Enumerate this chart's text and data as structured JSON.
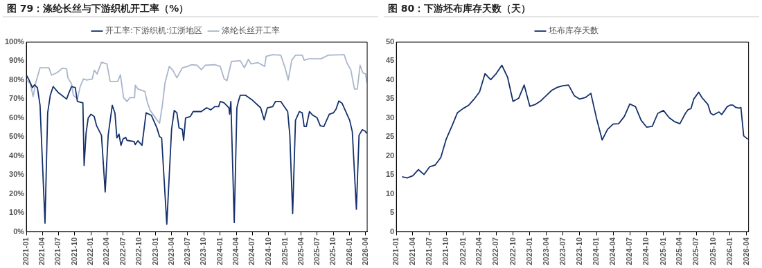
{
  "chart_data": [
    {
      "type": "line",
      "title": "图 79：涤纶长丝与下游织机开工率（%）",
      "legend": "top",
      "marker": "none",
      "line_style": "solid",
      "xlim": [
        "2021-01-01",
        "2026-04-10"
      ],
      "xticks": [
        "2021-01",
        "2021-04",
        "2021-07",
        "2021-10",
        "2022-01",
        "2022-04",
        "2022-07",
        "2022-10",
        "2023-01",
        "2023-04",
        "2023-07",
        "2023-10",
        "2024-01",
        "2024-04",
        "2024-07",
        "2024-10",
        "2025-01",
        "2025-04",
        "2025-07",
        "2025-10",
        "2026-01",
        "2026-04"
      ],
      "ylim": [
        0,
        100
      ],
      "yticks": [
        {
          "value": 0,
          "label": "0%"
        },
        {
          "value": 10,
          "label": "10%"
        },
        {
          "value": 20,
          "label": "20%"
        },
        {
          "value": 30,
          "label": "30%"
        },
        {
          "value": 40,
          "label": "40%"
        },
        {
          "value": 50,
          "label": "50%"
        },
        {
          "value": 60,
          "label": "60%"
        },
        {
          "value": 70,
          "label": "70%"
        },
        {
          "value": 80,
          "label": "80%"
        },
        {
          "value": 90,
          "label": "90%"
        },
        {
          "value": 100,
          "label": "100%"
        }
      ],
      "series": [
        {
          "name": "开工率:下游织机:江浙地区",
          "color": "#14306b",
          "x": [
            "2021-01-01",
            "2021-01-16",
            "2021-02-04",
            "2021-02-16",
            "2021-03-04",
            "2021-03-19",
            "2021-04-16",
            "2021-05-01",
            "2021-05-16",
            "2021-06-01",
            "2021-07-01",
            "2021-08-16",
            "2021-08-28",
            "2021-09-13",
            "2021-10-04",
            "2021-10-16",
            "2021-11-16",
            "2021-11-23",
            "2021-12-04",
            "2021-12-16",
            "2022-01-01",
            "2022-01-19",
            "2022-02-01",
            "2022-03-01",
            "2022-03-22",
            "2022-04-08",
            "2022-05-01",
            "2022-05-16",
            "2022-05-27",
            "2022-06-08",
            "2022-06-19",
            "2022-07-01",
            "2022-07-16",
            "2022-07-23",
            "2022-09-01",
            "2022-09-08",
            "2022-09-23",
            "2022-10-16",
            "2022-11-08",
            "2022-12-08",
            "2023-01-08",
            "2023-01-23",
            "2023-02-04",
            "2023-03-05",
            "2023-04-01",
            "2023-04-16",
            "2023-05-01",
            "2023-05-13",
            "2023-06-01",
            "2023-06-08",
            "2023-06-19",
            "2023-07-16",
            "2023-08-01",
            "2023-09-16",
            "2023-10-16",
            "2023-11-08",
            "2023-12-01",
            "2023-12-23",
            "2024-01-01",
            "2024-01-23",
            "2024-02-19",
            "2024-02-23",
            "2024-03-01",
            "2024-03-20",
            "2024-04-04",
            "2024-04-13",
            "2024-04-23",
            "2024-05-23",
            "2024-07-01",
            "2024-08-16",
            "2024-09-05",
            "2024-09-23",
            "2024-10-23",
            "2024-11-08",
            "2024-12-08",
            "2025-01-16",
            "2025-01-28",
            "2025-02-13",
            "2025-03-01",
            "2025-03-23",
            "2025-04-08",
            "2025-04-19",
            "2025-05-01",
            "2025-05-19",
            "2025-06-04",
            "2025-07-01",
            "2025-07-19",
            "2025-08-08",
            "2025-09-08",
            "2025-10-01",
            "2025-10-16",
            "2025-11-01",
            "2025-11-19",
            "2026-01-01",
            "2026-01-16",
            "2026-02-08",
            "2026-02-23",
            "2026-03-13",
            "2026-03-28",
            "2026-04-08"
          ],
          "values": [
            82.6,
            80,
            76,
            77.5,
            76,
            66.7,
            4.6,
            62.7,
            72,
            76.6,
            73.3,
            70,
            73,
            76.6,
            76,
            68.7,
            68,
            35,
            52,
            60,
            62,
            60.8,
            56,
            50.9,
            21,
            51,
            66.7,
            62.7,
            49.5,
            51.5,
            45.6,
            48.9,
            49.8,
            48.2,
            47.6,
            46,
            48,
            45.6,
            62.7,
            61.4,
            54.8,
            50.2,
            49.5,
            4,
            54,
            64,
            62.7,
            54.8,
            54,
            48.2,
            60,
            60.8,
            63.4,
            63.4,
            65.4,
            64.3,
            66,
            66,
            68.7,
            68,
            65.4,
            62,
            68.7,
            4.9,
            65.4,
            69,
            72,
            72,
            69.4,
            65.4,
            59,
            65.4,
            66,
            68.7,
            68.7,
            63.4,
            50.9,
            9.6,
            58.8,
            63.4,
            62.7,
            55.5,
            55.5,
            63.4,
            61.7,
            60.1,
            55.9,
            55.5,
            62,
            62.7,
            64.7,
            69,
            67.8,
            58.8,
            52.8,
            11.9,
            50.9,
            53.8,
            53.2,
            51.9
          ]
        },
        {
          "name": "涤纶长丝开工率",
          "color": "#a8b6cc",
          "x": [
            "2021-01-01",
            "2021-01-23",
            "2021-02-08",
            "2021-02-23",
            "2021-03-19",
            "2021-05-08",
            "2021-05-23",
            "2021-06-23",
            "2021-07-23",
            "2021-08-16",
            "2021-08-23",
            "2021-09-13",
            "2021-09-23",
            "2021-10-16",
            "2021-11-01",
            "2021-11-19",
            "2021-12-08",
            "2022-01-08",
            "2022-01-19",
            "2022-02-04",
            "2022-03-01",
            "2022-04-01",
            "2022-04-19",
            "2022-06-01",
            "2022-06-16",
            "2022-07-04",
            "2022-07-23",
            "2022-08-08",
            "2022-09-04",
            "2022-09-08",
            "2022-09-23",
            "2022-11-01",
            "2022-11-16",
            "2022-12-01",
            "2023-01-01",
            "2023-01-23",
            "2023-02-08",
            "2023-02-23",
            "2023-03-19",
            "2023-04-08",
            "2023-05-01",
            "2023-06-01",
            "2023-07-01",
            "2023-07-23",
            "2023-08-23",
            "2023-09-16",
            "2023-10-08",
            "2023-12-01",
            "2024-01-01",
            "2024-01-23",
            "2024-02-08",
            "2024-03-04",
            "2024-04-23",
            "2024-05-16",
            "2024-06-08",
            "2024-06-23",
            "2024-08-01",
            "2024-09-08",
            "2024-09-16",
            "2024-10-23",
            "2024-12-08",
            "2025-01-01",
            "2025-01-19",
            "2025-02-08",
            "2025-03-01",
            "2025-04-08",
            "2025-04-19",
            "2025-05-16",
            "2025-07-23",
            "2025-09-01",
            "2025-12-01",
            "2025-12-16",
            "2026-01-08",
            "2026-01-28",
            "2026-02-13",
            "2026-03-01",
            "2026-03-16",
            "2026-04-01",
            "2026-04-09"
          ],
          "values": [
            80,
            78,
            71.3,
            78.6,
            86.5,
            86.5,
            82.6,
            83.9,
            86.3,
            85.9,
            81.2,
            78,
            72,
            70,
            76.6,
            80.6,
            80,
            80.6,
            85.2,
            83.2,
            89.4,
            88.5,
            79.3,
            79.3,
            82.8,
            70.7,
            68.7,
            70.7,
            70.7,
            77.3,
            75.3,
            74,
            68,
            64,
            60,
            57.2,
            66.7,
            78.6,
            87.2,
            85.2,
            81.2,
            86.5,
            87.2,
            88.1,
            87.8,
            85.5,
            87.8,
            88.1,
            87.2,
            80.6,
            79.7,
            89.8,
            90.2,
            86.5,
            90.9,
            88.5,
            89.2,
            87.2,
            92.5,
            93.4,
            93.1,
            86.5,
            80,
            90.5,
            93.1,
            93.1,
            90.5,
            91.2,
            91.2,
            93.1,
            93.4,
            89.2,
            85.2,
            75.3,
            75.3,
            87.8,
            83.9,
            83.2,
            78.6
          ]
        }
      ]
    },
    {
      "type": "line",
      "title": "图 80：下游坯布库存天数（天）",
      "legend": "top",
      "marker": "none",
      "line_style": "solid",
      "xlim": [
        "2021-01-01",
        "2026-04-12"
      ],
      "xticks": [
        "2021-01",
        "2021-04",
        "2021-07",
        "2021-10",
        "2022-01",
        "2022-04",
        "2022-07",
        "2022-10",
        "2023-01",
        "2023-04",
        "2023-07",
        "2023-10",
        "2024-01",
        "2024-04",
        "2024-07",
        "2024-10",
        "2025-01",
        "2025-04",
        "2025-07",
        "2025-10",
        "2026-01",
        "2026-04"
      ],
      "ylim": [
        0,
        50
      ],
      "yticks": [
        0,
        5,
        10,
        15,
        20,
        25,
        30,
        35,
        40,
        45,
        50
      ],
      "series": [
        {
          "name": "坯布库存天数",
          "color": "#14306b",
          "x": [
            "2021-02",
            "2021-03",
            "2021-04",
            "2021-05",
            "2021-06",
            "2021-07",
            "2021-08",
            "2021-09",
            "2021-10",
            "2021-11",
            "2021-12",
            "2022-01",
            "2022-02",
            "2022-03",
            "2022-04",
            "2022-05",
            "2022-06",
            "2022-07",
            "2022-08",
            "2022-09",
            "2022-10",
            "2022-11",
            "2022-12",
            "2023-01",
            "2023-02",
            "2023-03",
            "2023-04",
            "2023-05",
            "2023-06",
            "2023-07",
            "2023-08",
            "2023-09",
            "2023-10",
            "2023-11",
            "2023-12",
            "2024-01",
            "2024-02",
            "2024-03",
            "2024-04",
            "2024-05",
            "2024-06",
            "2024-07",
            "2024-08",
            "2024-09",
            "2024-10",
            "2024-11",
            "2024-12",
            "2025-01",
            "2025-02",
            "2025-03",
            "2025-04",
            "2025-05",
            "2025-05-16",
            "2025-06",
            "2025-06-16",
            "2025-07-13",
            "2025-08",
            "2025-09",
            "2025-09-16",
            "2025-10",
            "2025-11",
            "2025-11-16",
            "2025-12-16",
            "2026-01",
            "2026-01-16",
            "2026-02",
            "2026-02-19",
            "2026-03",
            "2026-03-16",
            "2026-04-08"
          ],
          "values": [
            14.5,
            14.2,
            14.8,
            16.4,
            15.1,
            17.1,
            17.6,
            19.6,
            24.5,
            27.9,
            31.4,
            32.5,
            33.4,
            34.9,
            36.9,
            41.7,
            40.1,
            41.7,
            43.9,
            40.8,
            34.4,
            35.2,
            38.7,
            33.1,
            33.6,
            34.5,
            35.9,
            37.3,
            38.1,
            38.5,
            38.7,
            35.9,
            35,
            35.4,
            36.5,
            29.9,
            24.2,
            27,
            28.4,
            28.5,
            30.4,
            33.7,
            33,
            29.4,
            27.6,
            27.8,
            31.2,
            32,
            30.1,
            29.1,
            28.5,
            31.2,
            32.2,
            32.5,
            35,
            36.8,
            35.3,
            33.6,
            31.3,
            30.8,
            31.6,
            30.9,
            33,
            33.4,
            33.4,
            32.8,
            32.6,
            32.8,
            25.3,
            24.4
          ]
        }
      ]
    }
  ]
}
